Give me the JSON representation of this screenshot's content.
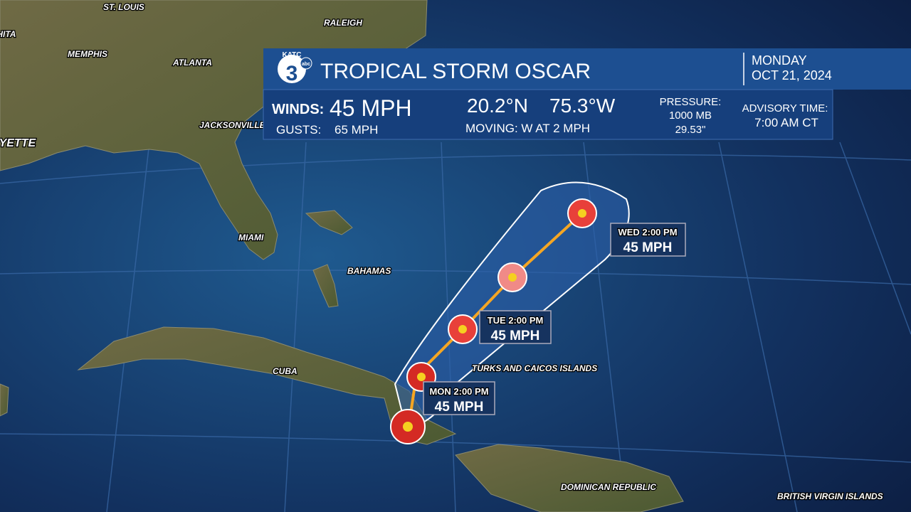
{
  "header": {
    "logo": {
      "call": "KATC",
      "number": "3",
      "network": "abc"
    },
    "title": "TROPICAL STORM OSCAR",
    "day": "MONDAY",
    "date": "OCT 21, 2024"
  },
  "stats": {
    "winds_label": "WINDS:",
    "winds": "45 MPH",
    "gusts_label": "GUSTS:",
    "gusts": "65 MPH",
    "lat": "20.2°N",
    "lon": "75.3°W",
    "moving": "MOVING: W AT 2 MPH",
    "pressure_label": "PRESSURE:",
    "pressure_mb": "1000 MB",
    "pressure_in": "29.53\"",
    "advisory_label": "ADVISORY TIME:",
    "advisory": "7:00 AM CT"
  },
  "map_labels": [
    "ST. LOUIS",
    "RALEIGH",
    "WICHITA",
    "MEMPHIS",
    "ATLANTA",
    "JACKSONVILLE",
    "LAFAYETTE",
    "MIAMI",
    "BAHAMAS",
    "CUBA",
    "TURKS AND CAICOS ISLANDS",
    "DOMINICAN REPUBLIC",
    "BRITISH VIRGIN ISLANDS"
  ],
  "forecast_points": [
    {
      "time": "WED 2:00 PM",
      "wind": "45 MPH"
    },
    {
      "time": "TUE 2:00 PM",
      "wind": "45 MPH"
    },
    {
      "time": "MON 2:00 PM",
      "wind": "45 MPH"
    }
  ]
}
